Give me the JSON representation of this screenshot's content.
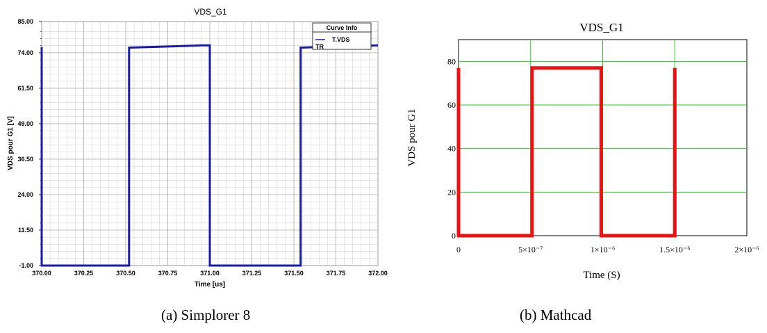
{
  "captions": {
    "a": "(a) Simplorer 8",
    "b": "(b) Mathcad"
  },
  "chart_data": [
    {
      "id": "simplorer",
      "type": "line",
      "title": "VDS_G1",
      "xlabel": "Time [us]",
      "ylabel": "VDS pour G1 [V]",
      "xlim": [
        370.0,
        372.0
      ],
      "ylim": [
        -1.0,
        85.0
      ],
      "xticks": [
        "370.00",
        "370.25",
        "370.50",
        "370.75",
        "371.00",
        "371.25",
        "371.50",
        "371.75",
        "372.00"
      ],
      "yticks": [
        "-1.00",
        "11.50",
        "24.00",
        "36.50",
        "49.00",
        "61.50",
        "74.00",
        "85.00"
      ],
      "grid": true,
      "legend": {
        "position": "top-right",
        "title": "Curve Info",
        "entries": [
          "T.VDS",
          "TR"
        ]
      },
      "series": [
        {
          "name": "T.VDS",
          "color": "#1a1aa8",
          "x": [
            370.0,
            370.0,
            370.52,
            370.52,
            370.75,
            370.95,
            371.0,
            371.0,
            371.54,
            371.54,
            371.75,
            372.0
          ],
          "y": [
            76.0,
            -1.0,
            -1.0,
            75.8,
            76.2,
            76.6,
            76.6,
            -1.0,
            -1.0,
            75.8,
            76.2,
            76.6
          ]
        }
      ]
    },
    {
      "id": "mathcad",
      "type": "line",
      "title": "VDS_G1",
      "xlabel": "Time (S)",
      "ylabel": "VDS pour G1",
      "xlim": [
        0,
        2e-06
      ],
      "ylim": [
        0,
        90
      ],
      "xticks": [
        "0",
        "5×10⁻⁷",
        "1×10⁻⁶",
        "1.5×10⁻⁶",
        "2×10⁻⁶"
      ],
      "yticks": [
        "0",
        "20",
        "40",
        "60",
        "80"
      ],
      "grid": true,
      "series": [
        {
          "color": "#ee1111",
          "x": [
            0,
            0,
            5.1e-07,
            5.1e-07,
            9.9e-07,
            9.9e-07,
            1.5e-06,
            1.5e-06
          ],
          "y": [
            77,
            0,
            0,
            77,
            77,
            0,
            0,
            77
          ]
        }
      ]
    }
  ]
}
